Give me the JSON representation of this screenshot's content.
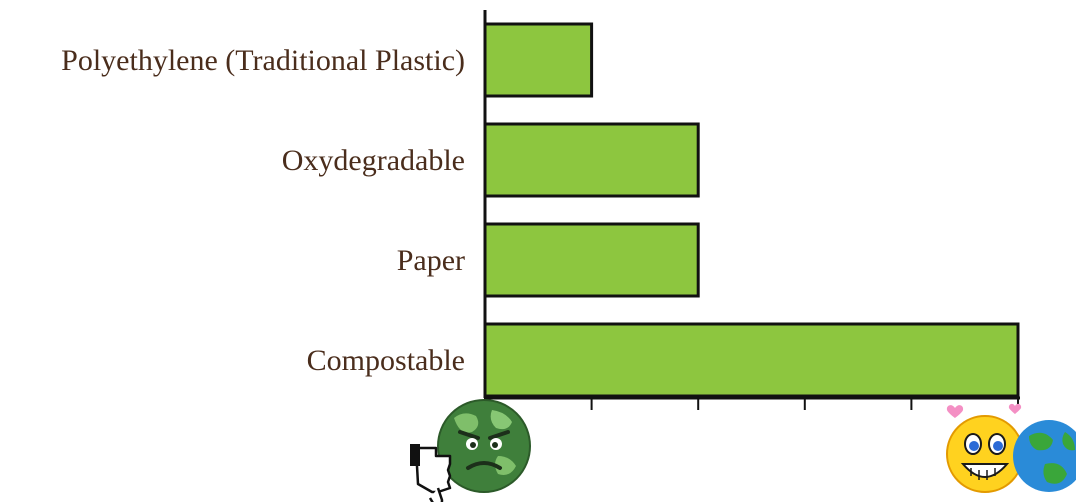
{
  "chart_data": {
    "type": "bar",
    "orientation": "horizontal",
    "categories": [
      "Polyethylene (Traditional Plastic)",
      "Oxydegradable",
      "Paper",
      "Compostable"
    ],
    "values": [
      1,
      2,
      2,
      5
    ],
    "xlim": [
      0,
      5
    ],
    "grid": false,
    "legend": "none",
    "title": "",
    "xlabel": "",
    "ylabel": ""
  },
  "colors": {
    "bar_fill": "#8dc63f",
    "bar_stroke": "#111111",
    "label_text": "#4a2d1c"
  },
  "icons": {
    "low_end": "angry-earth-thumbs-down-icon",
    "high_end": "smiling-earth-icon"
  }
}
